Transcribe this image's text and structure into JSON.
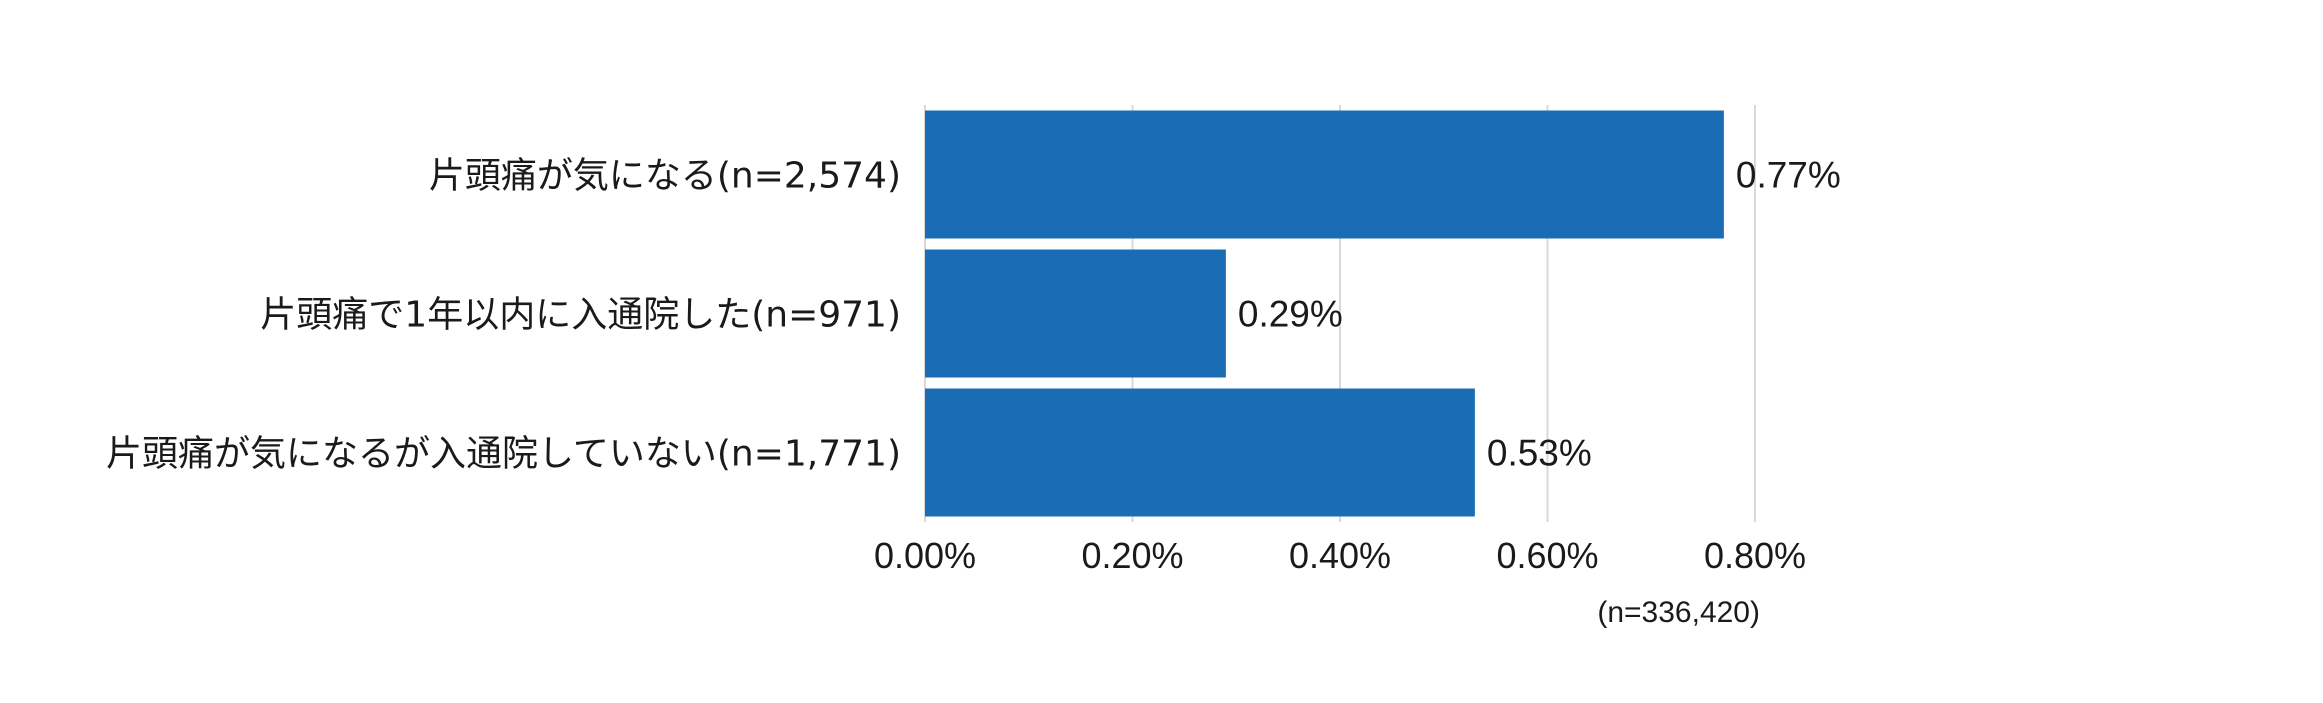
{
  "chart_data": {
    "type": "bar",
    "orientation": "horizontal",
    "categories": [
      "片頭痛が気になる(n=2,574)",
      "片頭痛で1年以内に入通院した(n=971)",
      "片頭痛が気になるが入通院していない(n=1,771)"
    ],
    "values": [
      0.77,
      0.29,
      0.53
    ],
    "value_labels": [
      "0.77%",
      "0.29%",
      "0.53%"
    ],
    "xlim": [
      0,
      0.8
    ],
    "x_ticks": [
      0,
      0.2,
      0.4,
      0.6,
      0.8
    ],
    "x_tick_labels": [
      "0.00%",
      "0.20%",
      "0.40%",
      "0.60%",
      "0.80%"
    ],
    "note": "(n=336,420)",
    "grid": true,
    "legend": "none",
    "colors": {
      "bar": "#1a6db5",
      "grid": "#d9d9d9",
      "text": "#1a1a1a"
    }
  }
}
